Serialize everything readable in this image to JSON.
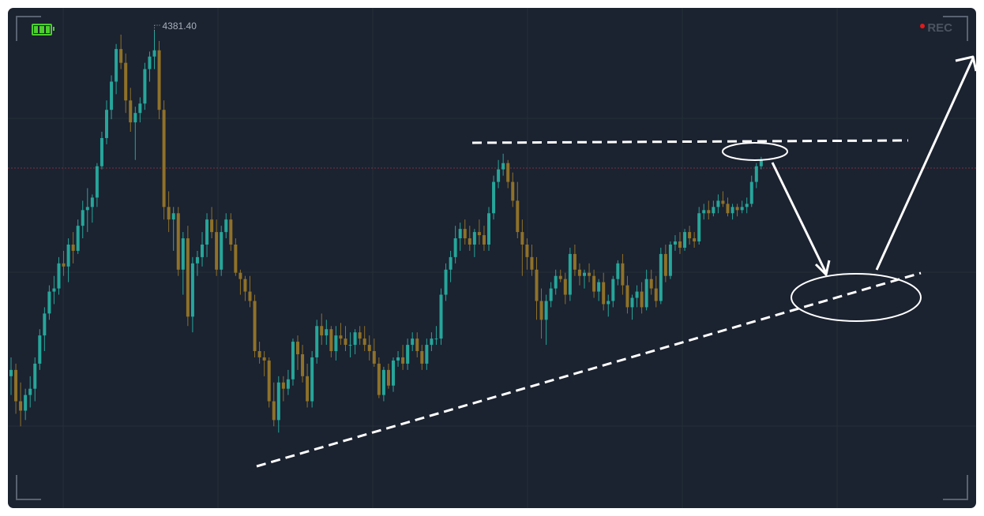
{
  "colors": {
    "background": "#1b2230",
    "bull": "#26a69a",
    "bear": "#8f7128",
    "grid": "#243039",
    "annotation": "#ffffff",
    "battery": "#4ccf2d",
    "rec_dot": "#e01a1a",
    "price_line": "#7a3340"
  },
  "overlay": {
    "rec_label": "REC"
  },
  "chart_data": {
    "type": "candlestick",
    "high_label": "4381.40",
    "ylim": [
      3690,
      4395
    ],
    "candles": [
      [
        3830,
        3860,
        3800,
        3840
      ],
      [
        3840,
        3850,
        3770,
        3790
      ],
      [
        3790,
        3820,
        3750,
        3775
      ],
      [
        3775,
        3810,
        3760,
        3800
      ],
      [
        3800,
        3830,
        3780,
        3810
      ],
      [
        3810,
        3860,
        3790,
        3850
      ],
      [
        3850,
        3905,
        3840,
        3895
      ],
      [
        3895,
        3940,
        3870,
        3930
      ],
      [
        3930,
        3975,
        3920,
        3965
      ],
      [
        3965,
        3990,
        3945,
        3970
      ],
      [
        3970,
        4020,
        3960,
        4010
      ],
      [
        4010,
        4030,
        3990,
        4005
      ],
      [
        4005,
        4050,
        3980,
        4040
      ],
      [
        4040,
        4060,
        4010,
        4030
      ],
      [
        4030,
        4080,
        4025,
        4070
      ],
      [
        4070,
        4110,
        4050,
        4095
      ],
      [
        4095,
        4130,
        4060,
        4100
      ],
      [
        4100,
        4120,
        4075,
        4115
      ],
      [
        4115,
        4170,
        4100,
        4165
      ],
      [
        4165,
        4220,
        4160,
        4210
      ],
      [
        4210,
        4270,
        4200,
        4255
      ],
      [
        4255,
        4310,
        4240,
        4300
      ],
      [
        4300,
        4360,
        4280,
        4352
      ],
      [
        4352,
        4375,
        4320,
        4330
      ],
      [
        4330,
        4345,
        4250,
        4270
      ],
      [
        4270,
        4290,
        4220,
        4235
      ],
      [
        4235,
        4260,
        4175,
        4250
      ],
      [
        4250,
        4275,
        4235,
        4265
      ],
      [
        4265,
        4330,
        4255,
        4320
      ],
      [
        4320,
        4348,
        4300,
        4340
      ],
      [
        4340,
        4381.4,
        4320,
        4350
      ],
      [
        4350,
        4365,
        4240,
        4255
      ],
      [
        4255,
        4270,
        4080,
        4100
      ],
      [
        4100,
        4125,
        4060,
        4080
      ],
      [
        4080,
        4100,
        4030,
        4090
      ],
      [
        4090,
        4100,
        3990,
        4000
      ],
      [
        4000,
        4060,
        3960,
        4050
      ],
      [
        4050,
        4070,
        3910,
        3925
      ],
      [
        3925,
        4020,
        3900,
        4010
      ],
      [
        4010,
        4030,
        3990,
        4020
      ],
      [
        4020,
        4060,
        4005,
        4040
      ],
      [
        4040,
        4090,
        4020,
        4080
      ],
      [
        4080,
        4100,
        4050,
        4060
      ],
      [
        4060,
        4080,
        3990,
        4000
      ],
      [
        4000,
        4070,
        3990,
        4060
      ],
      [
        4060,
        4090,
        4050,
        4080
      ],
      [
        4080,
        4090,
        4030,
        4040
      ],
      [
        4040,
        4050,
        3990,
        3995
      ],
      [
        3995,
        4000,
        3960,
        3985
      ],
      [
        3985,
        3990,
        3950,
        3965
      ],
      [
        3965,
        3990,
        3940,
        3950
      ],
      [
        3950,
        3960,
        3860,
        3870
      ],
      [
        3870,
        3885,
        3850,
        3860
      ],
      [
        3860,
        3870,
        3830,
        3855
      ],
      [
        3855,
        3860,
        3780,
        3790
      ],
      [
        3790,
        3820,
        3750,
        3760
      ],
      [
        3760,
        3830,
        3740,
        3820
      ],
      [
        3820,
        3830,
        3790,
        3810
      ],
      [
        3810,
        3840,
        3800,
        3825
      ],
      [
        3825,
        3890,
        3815,
        3885
      ],
      [
        3885,
        3895,
        3840,
        3865
      ],
      [
        3865,
        3880,
        3820,
        3830
      ],
      [
        3830,
        3850,
        3780,
        3790
      ],
      [
        3790,
        3870,
        3780,
        3860
      ],
      [
        3860,
        3920,
        3850,
        3910
      ],
      [
        3910,
        3930,
        3880,
        3895
      ],
      [
        3895,
        3920,
        3880,
        3905
      ],
      [
        3905,
        3910,
        3860,
        3870
      ],
      [
        3870,
        3910,
        3855,
        3895
      ],
      [
        3895,
        3915,
        3880,
        3890
      ],
      [
        3890,
        3910,
        3870,
        3880
      ],
      [
        3880,
        3900,
        3860,
        3880
      ],
      [
        3880,
        3905,
        3865,
        3900
      ],
      [
        3900,
        3910,
        3880,
        3890
      ],
      [
        3890,
        3910,
        3870,
        3880
      ],
      [
        3880,
        3895,
        3855,
        3870
      ],
      [
        3870,
        3890,
        3845,
        3850
      ],
      [
        3850,
        3860,
        3795,
        3800
      ],
      [
        3800,
        3845,
        3790,
        3840
      ],
      [
        3840,
        3850,
        3810,
        3815
      ],
      [
        3815,
        3860,
        3805,
        3855
      ],
      [
        3855,
        3870,
        3845,
        3860
      ],
      [
        3860,
        3880,
        3840,
        3850
      ],
      [
        3850,
        3890,
        3840,
        3880
      ],
      [
        3880,
        3900,
        3870,
        3890
      ],
      [
        3890,
        3900,
        3860,
        3870
      ],
      [
        3870,
        3880,
        3840,
        3850
      ],
      [
        3850,
        3890,
        3840,
        3880
      ],
      [
        3880,
        3900,
        3870,
        3890
      ],
      [
        3890,
        3910,
        3880,
        3890
      ],
      [
        3890,
        3970,
        3880,
        3960
      ],
      [
        3960,
        4010,
        3950,
        4000
      ],
      [
        4000,
        4030,
        3980,
        4020
      ],
      [
        4020,
        4070,
        4010,
        4050
      ],
      [
        4050,
        4075,
        4030,
        4065
      ],
      [
        4065,
        4080,
        4040,
        4050
      ],
      [
        4050,
        4070,
        4030,
        4040
      ],
      [
        4040,
        4065,
        4020,
        4060
      ],
      [
        4060,
        4080,
        4040,
        4055
      ],
      [
        4055,
        4070,
        4030,
        4040
      ],
      [
        4040,
        4100,
        4030,
        4090
      ],
      [
        4090,
        4150,
        4080,
        4140
      ],
      [
        4140,
        4175,
        4130,
        4160
      ],
      [
        4160,
        4185,
        4150,
        4170
      ],
      [
        4170,
        4175,
        4130,
        4140
      ],
      [
        4140,
        4155,
        4100,
        4110
      ],
      [
        4110,
        4140,
        4050,
        4060
      ],
      [
        4060,
        4080,
        3990,
        4040
      ],
      [
        4040,
        4050,
        4000,
        4020
      ],
      [
        4020,
        4040,
        3990,
        4000
      ],
      [
        4000,
        4020,
        3920,
        3950
      ],
      [
        3950,
        3970,
        3890,
        3920
      ],
      [
        3920,
        3960,
        3880,
        3950
      ],
      [
        3950,
        3980,
        3940,
        3970
      ],
      [
        3970,
        4000,
        3960,
        3990
      ],
      [
        3990,
        4000,
        3980,
        3985
      ],
      [
        3985,
        3995,
        3945,
        3960
      ],
      [
        3960,
        4035,
        3950,
        4025
      ],
      [
        4025,
        4040,
        3990,
        4000
      ],
      [
        4000,
        4010,
        3975,
        3990
      ],
      [
        3990,
        4000,
        3970,
        3995
      ],
      [
        3995,
        4010,
        3980,
        3990
      ],
      [
        3990,
        4000,
        3955,
        3965
      ],
      [
        3965,
        3985,
        3950,
        3980
      ],
      [
        3980,
        3995,
        3935,
        3945
      ],
      [
        3945,
        3960,
        3925,
        3950
      ],
      [
        3950,
        3990,
        3940,
        3985
      ],
      [
        3985,
        4015,
        3975,
        4010
      ],
      [
        4010,
        4025,
        3960,
        3975
      ],
      [
        3975,
        3990,
        3930,
        3940
      ],
      [
        3940,
        3960,
        3920,
        3955
      ],
      [
        3955,
        3975,
        3940,
        3965
      ],
      [
        3965,
        3980,
        3930,
        3940
      ],
      [
        3940,
        4000,
        3935,
        3985
      ],
      [
        3985,
        4000,
        3960,
        3970
      ],
      [
        3970,
        3990,
        3940,
        3950
      ],
      [
        3950,
        4035,
        3945,
        4025
      ],
      [
        4025,
        4040,
        3980,
        3990
      ],
      [
        3990,
        4045,
        3985,
        4040
      ],
      [
        4040,
        4055,
        4030,
        4045
      ],
      [
        4045,
        4060,
        4025,
        4035
      ],
      [
        4035,
        4065,
        4030,
        4060
      ],
      [
        4060,
        4070,
        4040,
        4050
      ],
      [
        4050,
        4060,
        4035,
        4045
      ],
      [
        4045,
        4100,
        4040,
        4090
      ],
      [
        4090,
        4105,
        4080,
        4095
      ],
      [
        4095,
        4110,
        4080,
        4090
      ],
      [
        4090,
        4110,
        4085,
        4100
      ],
      [
        4100,
        4120,
        4090,
        4110
      ],
      [
        4110,
        4125,
        4100,
        4105
      ],
      [
        4105,
        4115,
        4085,
        4090
      ],
      [
        4090,
        4105,
        4080,
        4100
      ],
      [
        4100,
        4105,
        4085,
        4095
      ],
      [
        4095,
        4110,
        4090,
        4100
      ],
      [
        4100,
        4115,
        4090,
        4105
      ],
      [
        4105,
        4150,
        4100,
        4140
      ],
      [
        4140,
        4170,
        4130,
        4165
      ],
      [
        4165,
        4180,
        4160,
        4175
      ]
    ],
    "annotations": {
      "resistance_line": true,
      "rising_support_line": true,
      "arrow_down_to_support": true,
      "arrow_up_breakout": true,
      "ellipses": 2
    }
  }
}
